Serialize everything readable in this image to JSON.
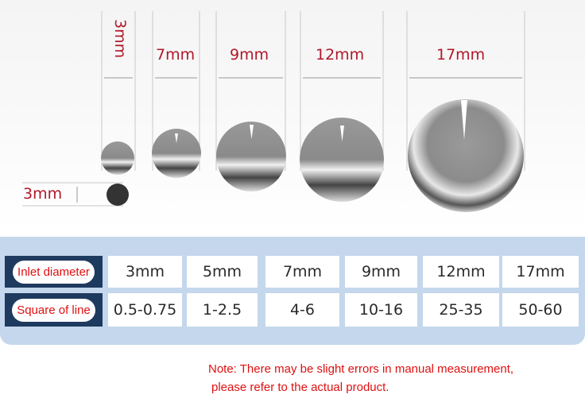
{
  "sizes": {
    "s3": "3mm",
    "s7": "7mm",
    "s9": "9mm",
    "s12": "12mm",
    "s17": "17mm",
    "height": "3mm"
  },
  "table": {
    "row1": {
      "header": "Inlet diameter",
      "values": [
        "3mm",
        "5mm",
        "7mm",
        "9mm",
        "12mm",
        "17mm"
      ]
    },
    "row2": {
      "header": "Square of line",
      "values": [
        "0.5-0.75",
        "1-2.5",
        "4-6",
        "10-16",
        "25-35",
        "50-60"
      ]
    }
  },
  "note": {
    "line1": "Note: There may be slight errors in manual measurement,",
    "line2": "please refer to the actual product."
  },
  "colors": {
    "label_red": "#b0182a",
    "header_bg": "#1f3a5f",
    "panel_bg": "#c4d7ec",
    "note_red": "#e01010"
  }
}
